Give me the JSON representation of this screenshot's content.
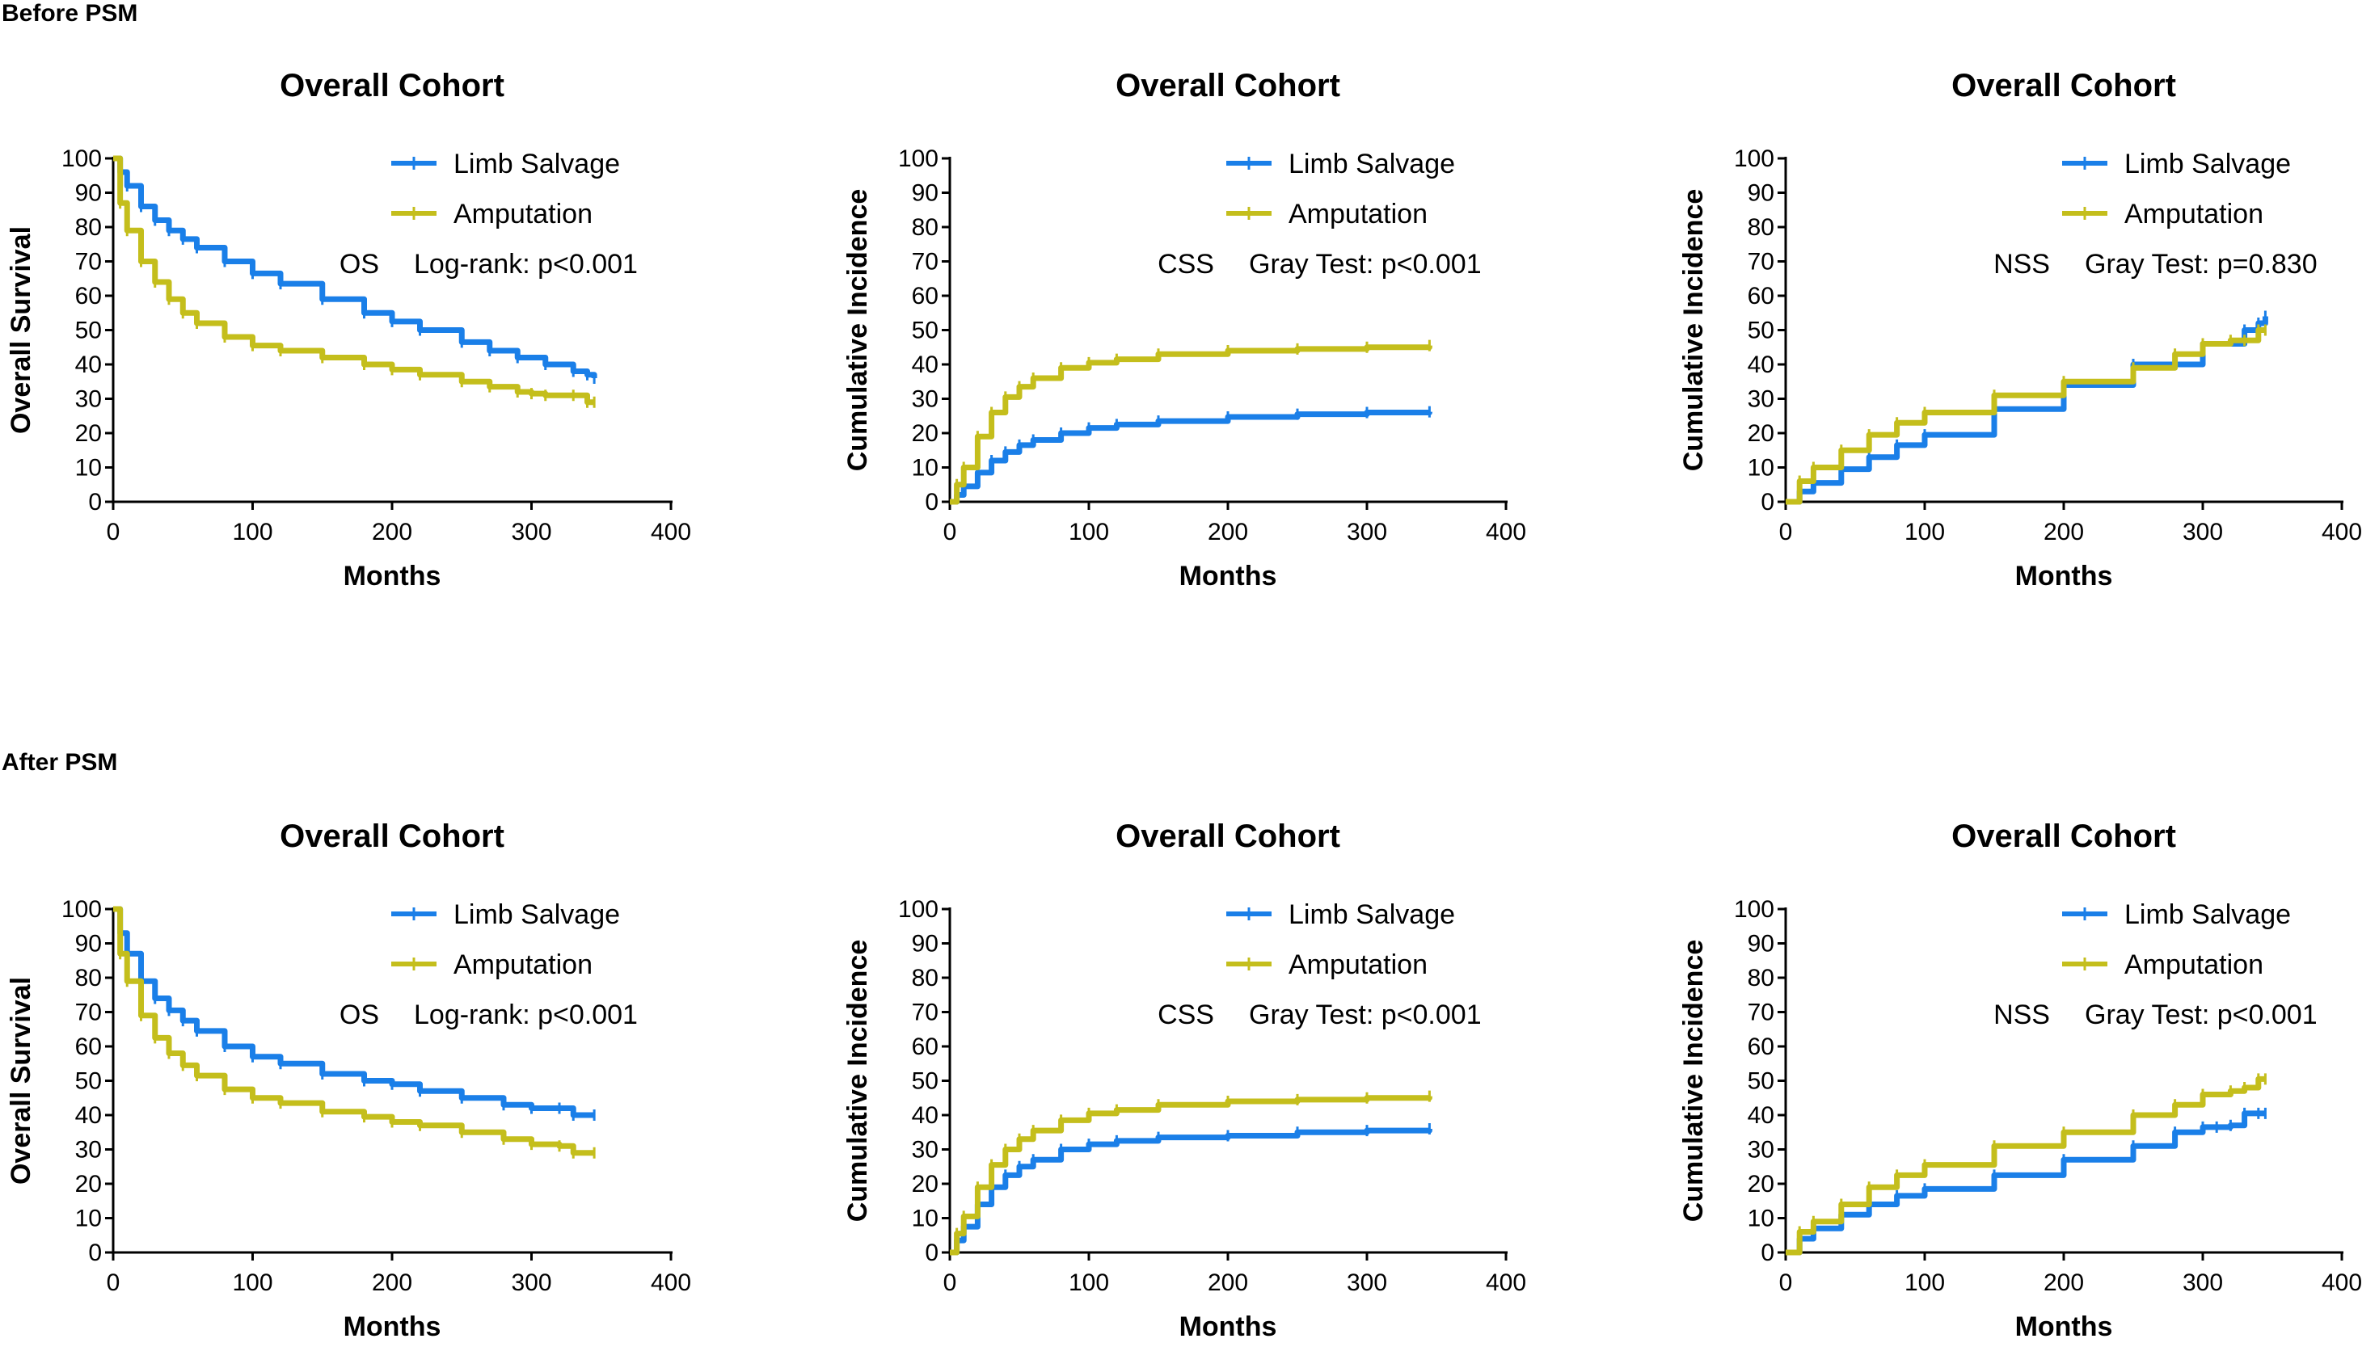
{
  "section_labels": [
    "Before PSM",
    "After PSM"
  ],
  "colors": {
    "limb_salvage": "#1a7fe8",
    "amputation": "#c4be1c",
    "axis": "#000000"
  },
  "chart_data": [
    {
      "type": "line",
      "section": "Before PSM",
      "title": "Overall Cohort",
      "xlabel": "Months",
      "ylabel": "Overall Survival",
      "xlim": [
        0,
        400
      ],
      "ylim": [
        0,
        100
      ],
      "xticks": [
        0,
        100,
        200,
        300,
        400
      ],
      "yticks": [
        0,
        10,
        20,
        30,
        40,
        50,
        60,
        70,
        80,
        90,
        100
      ],
      "annotation_label": "OS",
      "annotation_test": "Log-rank: p<0.001",
      "series": [
        {
          "name": "Limb Salvage",
          "color": "#1a7fe8",
          "x": [
            0,
            5,
            10,
            20,
            30,
            40,
            50,
            60,
            80,
            100,
            120,
            150,
            180,
            200,
            220,
            250,
            270,
            290,
            310,
            330,
            340,
            345
          ],
          "y": [
            100,
            96,
            92,
            86,
            82,
            79,
            76.5,
            74,
            70,
            66.5,
            63.5,
            59,
            55,
            52.5,
            50,
            46.5,
            44,
            42,
            40,
            38,
            37,
            36
          ]
        },
        {
          "name": "Amputation",
          "color": "#c4be1c",
          "x": [
            0,
            5,
            10,
            20,
            30,
            40,
            50,
            60,
            80,
            100,
            120,
            150,
            180,
            200,
            220,
            250,
            270,
            290,
            300,
            310,
            330,
            340,
            345
          ],
          "y": [
            100,
            87,
            79,
            70,
            64,
            59,
            55,
            52,
            48,
            45.5,
            44,
            42,
            40,
            38.5,
            37,
            35,
            33.5,
            32,
            31.5,
            31,
            31,
            29,
            29
          ]
        }
      ]
    },
    {
      "type": "line",
      "section": "Before PSM",
      "title": "Overall Cohort",
      "xlabel": "Months",
      "ylabel": "Cumulative Incidence",
      "xlim": [
        0,
        400
      ],
      "ylim": [
        0,
        100
      ],
      "xticks": [
        0,
        100,
        200,
        300,
        400
      ],
      "yticks": [
        0,
        10,
        20,
        30,
        40,
        50,
        60,
        70,
        80,
        90,
        100
      ],
      "annotation_label": "CSS",
      "annotation_test": "Gray Test: p<0.001",
      "series": [
        {
          "name": "Limb Salvage",
          "color": "#1a7fe8",
          "x": [
            0,
            5,
            10,
            20,
            30,
            40,
            50,
            60,
            80,
            100,
            120,
            150,
            200,
            250,
            300,
            345
          ],
          "y": [
            0,
            2,
            4.5,
            8.5,
            12,
            14.5,
            16.5,
            18,
            20,
            21.5,
            22.5,
            23.5,
            24.7,
            25.5,
            26,
            26.2
          ]
        },
        {
          "name": "Amputation",
          "color": "#c4be1c",
          "x": [
            0,
            5,
            10,
            20,
            30,
            40,
            50,
            60,
            80,
            100,
            120,
            150,
            200,
            250,
            300,
            345
          ],
          "y": [
            0,
            5,
            10,
            19,
            26,
            30.5,
            33.5,
            36,
            39,
            40.5,
            41.5,
            43,
            44,
            44.5,
            45,
            45.5
          ]
        }
      ]
    },
    {
      "type": "line",
      "section": "Before PSM",
      "title": "Overall Cohort",
      "xlabel": "Months",
      "ylabel": "Cumulative Incidence",
      "xlim": [
        0,
        400
      ],
      "ylim": [
        0,
        100
      ],
      "xticks": [
        0,
        100,
        200,
        300,
        400
      ],
      "yticks": [
        0,
        10,
        20,
        30,
        40,
        50,
        60,
        70,
        80,
        90,
        100
      ],
      "annotation_label": "NSS",
      "annotation_test": "Gray Test: p=0.830",
      "series": [
        {
          "name": "Limb Salvage",
          "color": "#1a7fe8",
          "x": [
            0,
            10,
            20,
            40,
            60,
            80,
            100,
            150,
            200,
            250,
            300,
            330,
            340,
            345
          ],
          "y": [
            0,
            3,
            5.5,
            9.5,
            13,
            16.5,
            19.5,
            27,
            34,
            40,
            46,
            50,
            52,
            54
          ]
        },
        {
          "name": "Amputation",
          "color": "#c4be1c",
          "x": [
            0,
            10,
            20,
            40,
            60,
            80,
            100,
            150,
            200,
            250,
            280,
            300,
            320,
            330,
            340,
            345
          ],
          "y": [
            0,
            6,
            10,
            15,
            19.5,
            23,
            26,
            31,
            35,
            39,
            43,
            46,
            47,
            47,
            50,
            50
          ]
        }
      ]
    },
    {
      "type": "line",
      "section": "After PSM",
      "title": "Overall Cohort",
      "xlabel": "Months",
      "ylabel": "Overall Survival",
      "xlim": [
        0,
        400
      ],
      "ylim": [
        0,
        100
      ],
      "xticks": [
        0,
        100,
        200,
        300,
        400
      ],
      "yticks": [
        0,
        10,
        20,
        30,
        40,
        50,
        60,
        70,
        80,
        90,
        100
      ],
      "annotation_label": "OS",
      "annotation_test": "Log-rank: p<0.001",
      "series": [
        {
          "name": "Limb Salvage",
          "color": "#1a7fe8",
          "x": [
            0,
            5,
            10,
            20,
            30,
            40,
            50,
            60,
            80,
            100,
            120,
            150,
            180,
            200,
            220,
            250,
            280,
            300,
            320,
            330,
            345
          ],
          "y": [
            100,
            93,
            87,
            79,
            74,
            70.5,
            67.5,
            64.5,
            60,
            57,
            55,
            52,
            50,
            49,
            47,
            45,
            43,
            42,
            42,
            40,
            40
          ]
        },
        {
          "name": "Amputation",
          "color": "#c4be1c",
          "x": [
            0,
            5,
            10,
            20,
            30,
            40,
            50,
            60,
            80,
            100,
            120,
            150,
            180,
            200,
            220,
            250,
            280,
            300,
            320,
            330,
            345
          ],
          "y": [
            100,
            87,
            79,
            69,
            62.5,
            58,
            54.5,
            51.5,
            47.5,
            45,
            43.5,
            41,
            39.5,
            38,
            37,
            35,
            33,
            31.5,
            31,
            29,
            29
          ]
        }
      ]
    },
    {
      "type": "line",
      "section": "After PSM",
      "title": "Overall Cohort",
      "xlabel": "Months",
      "ylabel": "Cumulative Incidence",
      "xlim": [
        0,
        400
      ],
      "ylim": [
        0,
        100
      ],
      "xticks": [
        0,
        100,
        200,
        300,
        400
      ],
      "yticks": [
        0,
        10,
        20,
        30,
        40,
        50,
        60,
        70,
        80,
        90,
        100
      ],
      "annotation_label": "CSS",
      "annotation_test": "Gray Test: p<0.001",
      "series": [
        {
          "name": "Limb Salvage",
          "color": "#1a7fe8",
          "x": [
            0,
            5,
            10,
            20,
            30,
            40,
            50,
            60,
            80,
            100,
            120,
            150,
            200,
            250,
            300,
            345
          ],
          "y": [
            0,
            3.5,
            7.5,
            14,
            19,
            22.5,
            25,
            27,
            30,
            31.5,
            32.5,
            33.5,
            34,
            35,
            35.5,
            36
          ]
        },
        {
          "name": "Amputation",
          "color": "#c4be1c",
          "x": [
            0,
            5,
            10,
            20,
            30,
            40,
            50,
            60,
            80,
            100,
            120,
            150,
            200,
            250,
            300,
            345
          ],
          "y": [
            0,
            5.5,
            10.5,
            19,
            25.5,
            30,
            33,
            35.5,
            38.5,
            40.5,
            41.5,
            43,
            44,
            44.5,
            45,
            45.5
          ]
        }
      ]
    },
    {
      "type": "line",
      "section": "After PSM",
      "title": "Overall Cohort",
      "xlabel": "Months",
      "ylabel": "Cumulative Incidence",
      "xlim": [
        0,
        400
      ],
      "ylim": [
        0,
        100
      ],
      "xticks": [
        0,
        100,
        200,
        300,
        400
      ],
      "yticks": [
        0,
        10,
        20,
        30,
        40,
        50,
        60,
        70,
        80,
        90,
        100
      ],
      "annotation_label": "NSS",
      "annotation_test": "Gray Test: p<0.001",
      "series": [
        {
          "name": "Limb Salvage",
          "color": "#1a7fe8",
          "x": [
            0,
            10,
            20,
            40,
            60,
            80,
            100,
            150,
            200,
            250,
            280,
            300,
            310,
            320,
            330,
            340,
            345
          ],
          "y": [
            0,
            4,
            7,
            11,
            14,
            16.5,
            18.5,
            22.5,
            27,
            31,
            35,
            36.5,
            36.5,
            37,
            40.5,
            40.5,
            40.5
          ]
        },
        {
          "name": "Amputation",
          "color": "#c4be1c",
          "x": [
            0,
            10,
            20,
            40,
            60,
            80,
            100,
            150,
            200,
            250,
            280,
            300,
            320,
            330,
            340,
            345
          ],
          "y": [
            0,
            6,
            9,
            14,
            19,
            22.5,
            25.5,
            31,
            35,
            40,
            43,
            46,
            47,
            48,
            50.5,
            50.5
          ]
        }
      ]
    }
  ]
}
